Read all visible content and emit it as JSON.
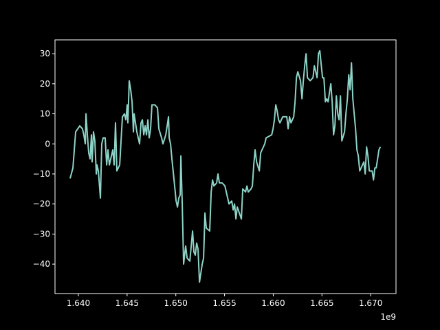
{
  "chart_data": {
    "type": "line",
    "color": "#8dd3c7",
    "x_offset_label": "1e9",
    "x": [
      1639150000.0,
      1639440000.0,
      1639580000.0,
      1639720000.0,
      1639930000.0,
      1640140000.0,
      1640420000.0,
      1640560000.0,
      1640710000.0,
      1640780000.0,
      1640920000.0,
      1641060000.0,
      1641200000.0,
      1641340000.0,
      1641410000.0,
      1641550000.0,
      1641690000.0,
      1641840000.0,
      1641910000.0,
      1642050000.0,
      1642260000.0,
      1642400000.0,
      1642540000.0,
      1642750000.0,
      1642900000.0,
      1643040000.0,
      1643180000.0,
      1643530000.0,
      1643670000.0,
      1643810000.0,
      1643950000.0,
      1644240000.0,
      1644520000.0,
      1644730000.0,
      1644870000.0,
      1645010000.0,
      1645080000.0,
      1645220000.0,
      1645370000.0,
      1645510000.0,
      1645650000.0,
      1645720000.0,
      1646000000.0,
      1646280000.0,
      1646430000.0,
      1646570000.0,
      1646710000.0,
      1646850000.0,
      1646990000.0,
      1647130000.0,
      1647270000.0,
      1647410000.0,
      1647550000.0,
      1647840000.0,
      1648120000.0,
      1648260000.0,
      1648540000.0,
      1648680000.0,
      1648970000.0,
      1649250000.0,
      1649320000.0,
      1649460000.0,
      1649600000.0,
      1649880000.0,
      1650030000.0,
      1650170000.0,
      1650310000.0,
      1650450000.0,
      1650520000.0,
      1650660000.0,
      1650800000.0,
      1651010000.0,
      1651160000.0,
      1651440000.0,
      1651720000.0,
      1651860000.0,
      1652000000.0,
      1652140000.0,
      1652280000.0,
      1652430000.0,
      1652710000.0,
      1652850000.0,
      1652990000.0,
      1653130000.0,
      1653480000.0,
      1653630000.0,
      1653770000.0,
      1653910000.0,
      1654190000.0,
      1654330000.0,
      1654470000.0,
      1654760000.0,
      1655040000.0,
      1655320000.0,
      1655460000.0,
      1655740000.0,
      1655890000.0,
      1656030000.0,
      1656170000.0,
      1656310000.0,
      1656730000.0,
      1656870000.0,
      1657160000.0,
      1657300000.0,
      1657440000.0,
      1657720000.0,
      1657860000.0,
      1658000000.0,
      1658140000.0,
      1658290000.0,
      1658570000.0,
      1658710000.0,
      1658990000.0,
      1659130000.0,
      1659270000.0,
      1659840000.0,
      1659980000.0,
      1660120000.0,
      1660260000.0,
      1660400000.0,
      1660550000.0,
      1660690000.0,
      1660970000.0,
      1661390000.0,
      1661530000.0,
      1661670000.0,
      1661820000.0,
      1662100000.0,
      1662240000.0,
      1662380000.0,
      1662520000.0,
      1662800000.0,
      1662950000.0,
      1663090000.0,
      1663230000.0,
      1663370000.0,
      1663510000.0,
      1663790000.0,
      1664080000.0,
      1664220000.0,
      1664500000.0,
      1664640000.0,
      1664780000.0,
      1665060000.0,
      1665200000.0,
      1665350000.0,
      1665490000.0,
      1665630000.0,
      1665910000.0,
      1666050000.0,
      1666190000.0,
      1666330000.0,
      1666480000.0,
      1666620000.0,
      1666760000.0,
      1666900000.0,
      1667040000.0,
      1667320000.0,
      1667460000.0,
      1667610000.0,
      1667750000.0,
      1667890000.0,
      1668030000.0,
      1668170000.0,
      1668450000.0,
      1668590000.0,
      1668730000.0,
      1668880000.0,
      1669020000.0,
      1669300000.0,
      1669440000.0,
      1669580000.0,
      1669720000.0,
      1669860000.0,
      1670150000.0,
      1670290000.0,
      1670430000.0,
      1670570000.0,
      1670710000.0,
      1670850000.0,
      1670990000.0
    ],
    "values": [
      -11.5,
      -8,
      -2,
      4,
      5,
      6,
      5,
      3,
      0,
      10,
      3,
      -3,
      -5,
      3,
      -6,
      4,
      1,
      -10,
      -7,
      -9,
      -18,
      0,
      2,
      2,
      -7,
      -2,
      -7,
      -2,
      -7,
      7,
      -9,
      -7,
      9,
      10,
      8,
      13,
      7,
      21,
      18,
      14,
      4,
      10,
      4,
      0,
      7,
      8,
      3,
      6,
      3,
      8,
      2,
      5,
      13,
      13,
      12,
      5,
      2,
      0,
      3,
      9,
      2,
      0,
      -5,
      -14,
      -19,
      -21,
      -18,
      -17,
      -4,
      -20,
      -40,
      -34,
      -38,
      -39,
      -29,
      -36,
      -37,
      -33,
      -35,
      -46,
      -40,
      -38,
      -23,
      -28,
      -29,
      -16,
      -12,
      -14,
      -13,
      -10,
      -13,
      -13,
      -14,
      -18,
      -20,
      -19,
      -22,
      -20,
      -25,
      -21,
      -25,
      -15,
      -16,
      -14,
      -16,
      -15,
      -14,
      -7,
      -2,
      -6,
      -9,
      -3,
      -1,
      0,
      2,
      3,
      5,
      8,
      13,
      11,
      8,
      7,
      9,
      9,
      5,
      9,
      7,
      9,
      14,
      22,
      24,
      21,
      15,
      21,
      26,
      30,
      22,
      21,
      22,
      26,
      22,
      30,
      31,
      22,
      22,
      14,
      15,
      14,
      20,
      14,
      3,
      6,
      16,
      10,
      8,
      16,
      1,
      4,
      10,
      15,
      23,
      18,
      27,
      15,
      5,
      -2,
      -4,
      -9,
      -8,
      -6,
      -10,
      -1,
      -4,
      -9,
      -9,
      -12,
      -8,
      -8,
      -5,
      -2,
      -1
    ],
    "xlim": [
      1637600000.0,
      1672600000.0
    ],
    "xticks": [
      {
        "value": 1640000000.0,
        "label": "1.640"
      },
      {
        "value": 1645000000.0,
        "label": "1.645"
      },
      {
        "value": 1650000000.0,
        "label": "1.650"
      },
      {
        "value": 1655000000.0,
        "label": "1.655"
      },
      {
        "value": 1660000000.0,
        "label": "1.660"
      },
      {
        "value": 1665000000.0,
        "label": "1.665"
      },
      {
        "value": 1670000000.0,
        "label": "1.670"
      }
    ],
    "ylim": [
      -49.8,
      34.6
    ],
    "yticks": [
      {
        "value": -40,
        "label": "−40"
      },
      {
        "value": -30,
        "label": "−30"
      },
      {
        "value": -20,
        "label": "−20"
      },
      {
        "value": -10,
        "label": "−10"
      },
      0,
      10,
      20,
      30
    ]
  }
}
